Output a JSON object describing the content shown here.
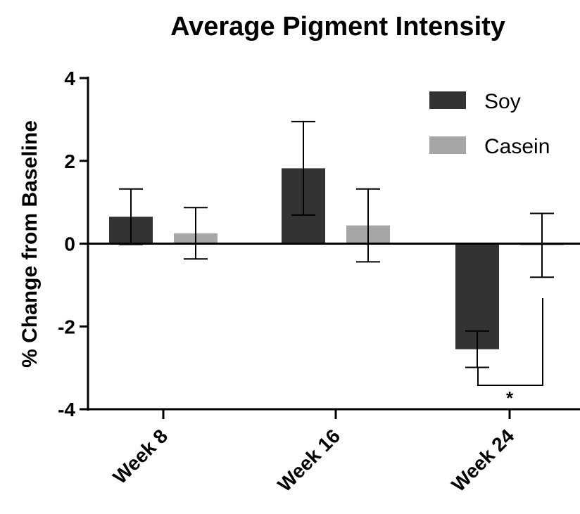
{
  "chart_data": {
    "type": "bar",
    "title": "Average Pigment Intensity",
    "y_label": "% Change from Baseline",
    "categories": [
      "Week 8",
      "Week 16",
      "Week 24"
    ],
    "series": [
      {
        "name": "Soy",
        "color": "#333333",
        "values": [
          0.65,
          1.82,
          -2.55
        ],
        "errors": [
          0.67,
          1.13,
          0.44
        ]
      },
      {
        "name": "Casein",
        "color": "#a6a5a7",
        "values": [
          0.25,
          0.44,
          -0.04
        ],
        "errors": [
          0.62,
          0.88,
          0.77
        ]
      }
    ],
    "ylim": [
      -4,
      4
    ],
    "yticks": [
      -4,
      -2,
      0,
      2,
      4
    ],
    "annotation": "*"
  }
}
